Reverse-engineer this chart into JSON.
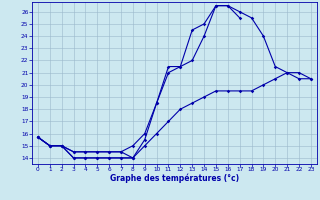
{
  "title": "Graphe des températures (°c)",
  "background_color": "#cce8f0",
  "grid_color": "#9bb8cc",
  "line_color": "#0000aa",
  "xlim": [
    -0.5,
    23.5
  ],
  "ylim": [
    13.5,
    26.8
  ],
  "xticks": [
    0,
    1,
    2,
    3,
    4,
    5,
    6,
    7,
    8,
    9,
    10,
    11,
    12,
    13,
    14,
    15,
    16,
    17,
    18,
    19,
    20,
    21,
    22,
    23
  ],
  "yticks": [
    14,
    15,
    16,
    17,
    18,
    19,
    20,
    21,
    22,
    23,
    24,
    25,
    26
  ],
  "series": [
    {
      "x": [
        0,
        1,
        2,
        3,
        4,
        5,
        6,
        7,
        8
      ],
      "y": [
        15.7,
        15.0,
        15.0,
        14.0,
        14.0,
        14.0,
        14.0,
        14.0,
        14.0
      ]
    },
    {
      "x": [
        0,
        1,
        2,
        3,
        4,
        5,
        6,
        7,
        8,
        9,
        10,
        11,
        12,
        13,
        14,
        15,
        16,
        17,
        18,
        19,
        20,
        21,
        22,
        23
      ],
      "y": [
        15.7,
        15.0,
        15.0,
        14.0,
        14.0,
        14.0,
        14.0,
        14.0,
        14.0,
        15.0,
        16.0,
        17.0,
        18.0,
        18.5,
        19.0,
        19.5,
        19.5,
        19.5,
        19.5,
        20.0,
        20.5,
        21.0,
        20.5,
        20.5
      ]
    },
    {
      "x": [
        0,
        1,
        2,
        3,
        4,
        5,
        6,
        7,
        8,
        9,
        10,
        11,
        12,
        13,
        14,
        15,
        16,
        17,
        18,
        19,
        20,
        21,
        22,
        23
      ],
      "y": [
        15.7,
        15.0,
        15.0,
        14.5,
        14.5,
        14.5,
        14.5,
        14.5,
        14.0,
        15.5,
        18.5,
        21.0,
        21.5,
        22.0,
        24.0,
        26.5,
        26.5,
        26.0,
        25.5,
        24.0,
        21.5,
        21.0,
        21.0,
        20.5
      ]
    },
    {
      "x": [
        0,
        1,
        2,
        3,
        4,
        5,
        6,
        7,
        8,
        9,
        10,
        11,
        12,
        13,
        14,
        15,
        16,
        17
      ],
      "y": [
        15.7,
        15.0,
        15.0,
        14.5,
        14.5,
        14.5,
        14.5,
        14.5,
        15.0,
        16.0,
        18.5,
        21.5,
        21.5,
        24.5,
        25.0,
        26.5,
        26.5,
        25.5
      ]
    }
  ]
}
